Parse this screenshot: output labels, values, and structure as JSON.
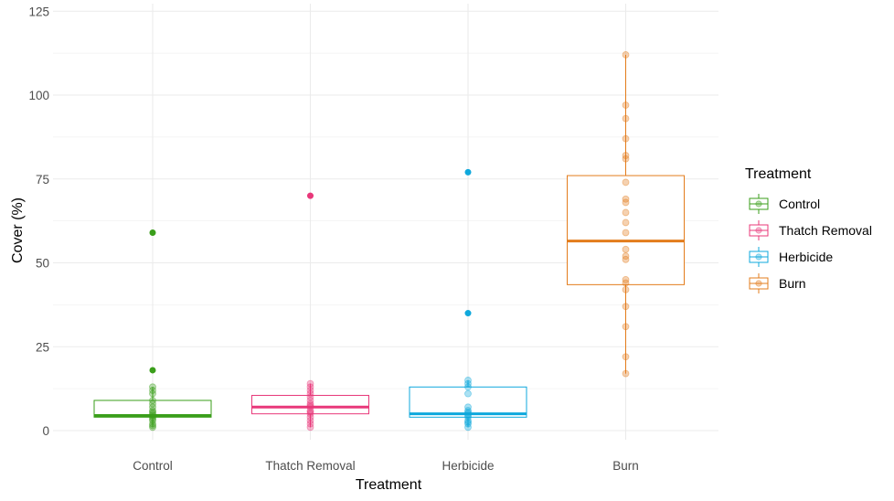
{
  "chart_data": {
    "type": "boxplot",
    "xlabel": "Treatment",
    "ylabel": "Cover (%)",
    "ylim": [
      -2,
      125
    ],
    "yticks": [
      0,
      25,
      50,
      75,
      100,
      125
    ],
    "ytick_labels": [
      "0",
      "25",
      "50",
      "75",
      "100",
      "125"
    ],
    "grid": true,
    "legend": {
      "title": "Treatment",
      "position": "right"
    },
    "categories": [
      "Control",
      "Thatch Removal",
      "Herbicide",
      "Burn"
    ],
    "series": [
      {
        "name": "Control",
        "color": "#3a9e1a",
        "box": {
          "q1": 4,
          "median": 4.5,
          "q3": 9,
          "whisker_low": 1,
          "whisker_high": 13
        },
        "points": [
          1,
          1.5,
          2,
          3,
          3.5,
          4,
          4.5,
          5,
          5.5,
          6,
          7,
          8,
          9,
          11,
          12,
          13
        ],
        "outliers": [
          18,
          59
        ]
      },
      {
        "name": "Thatch Removal",
        "color": "#e8387a",
        "box": {
          "q1": 5,
          "median": 7,
          "q3": 10.5,
          "whisker_low": 1,
          "whisker_high": 14
        },
        "points": [
          1,
          2,
          3,
          4,
          5,
          5.5,
          6,
          7,
          7.5,
          8,
          9,
          10,
          11,
          12,
          13,
          14
        ],
        "outliers": [
          70
        ]
      },
      {
        "name": "Herbicide",
        "color": "#0fa8dc",
        "box": {
          "q1": 4,
          "median": 5,
          "q3": 13,
          "whisker_low": 1,
          "whisker_high": 15
        },
        "points": [
          1,
          2,
          2.5,
          3,
          4,
          4.5,
          5,
          5.5,
          6,
          7,
          11,
          13,
          14,
          15
        ],
        "outliers": [
          35,
          77
        ]
      },
      {
        "name": "Burn",
        "color": "#e37c1c",
        "box": {
          "q1": 43.5,
          "median": 56.5,
          "q3": 76,
          "whisker_low": 17,
          "whisker_high": 112
        },
        "points": [
          17,
          22,
          31,
          37,
          42,
          44,
          45,
          51,
          52,
          54,
          59,
          62,
          65,
          68,
          69,
          74,
          81,
          82,
          87,
          93,
          97,
          112
        ],
        "outliers": []
      }
    ]
  }
}
